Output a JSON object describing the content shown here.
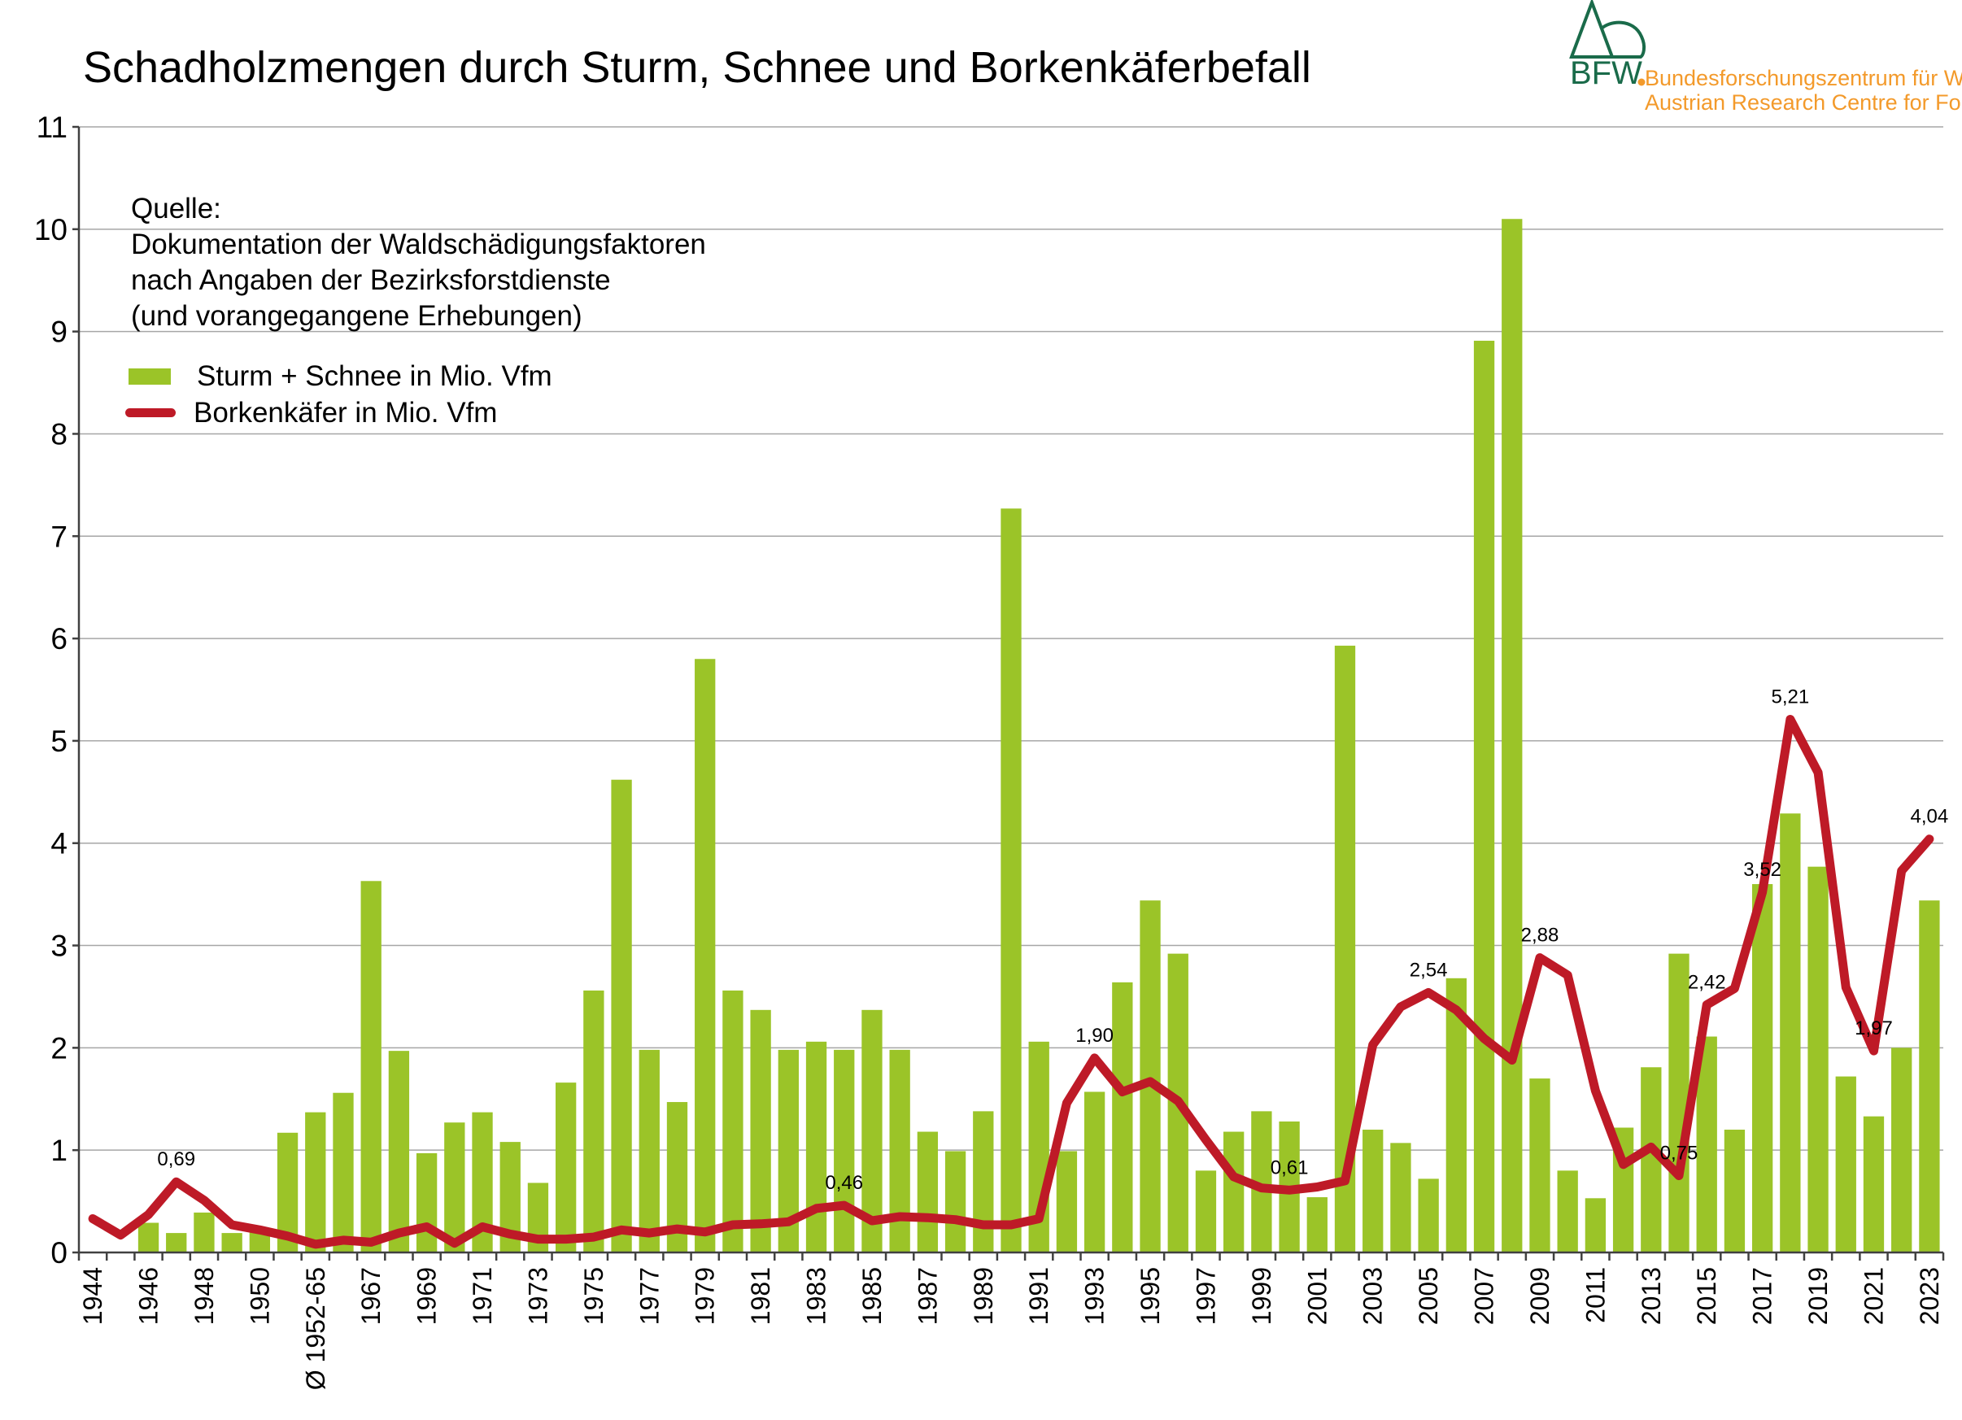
{
  "title": "Schadholzmengen durch Sturm, Schnee und Borkenkäferbefall",
  "logo": {
    "text": "BFW",
    "org_de": "Bundesforschungszentrum für Wald",
    "org_en": "Austrian Research Centre for Forests",
    "colors": {
      "green": "#1a6b4a",
      "orange": "#f39a2b"
    }
  },
  "source": {
    "line1": "Quelle:",
    "line2": "Dokumentation der Waldschädigungsfaktoren",
    "line3": "nach Angaben der Bezirksforstdienste",
    "line4": "(und vorangegangene Erhebungen)"
  },
  "chart_data": {
    "type": "bar+line",
    "title": "Schadholzmengen durch Sturm, Schnee und Borkenkäferbefall",
    "ylim": [
      0,
      11
    ],
    "yticks": [
      0,
      1,
      2,
      3,
      4,
      5,
      6,
      7,
      8,
      9,
      10,
      11
    ],
    "grid": true,
    "legend_position": "top-left",
    "categories": [
      "1944",
      "1945",
      "1946",
      "1947",
      "1948",
      "1949",
      "1950",
      "1951",
      "Ø 1952-65",
      "1966",
      "1967",
      "1968",
      "1969",
      "1970",
      "1971",
      "1972",
      "1973",
      "1974",
      "1975",
      "1976",
      "1977",
      "1978",
      "1979",
      "1980",
      "1981",
      "1982",
      "1983",
      "1984",
      "1985",
      "1986",
      "1987",
      "1988",
      "1989",
      "1990",
      "1991",
      "1992",
      "1993",
      "1994",
      "1995",
      "1996",
      "1997",
      "1998",
      "1999",
      "2000",
      "2001",
      "2002",
      "2003",
      "2004",
      "2005",
      "2006",
      "2007",
      "2008",
      "2009",
      "2010",
      "2011",
      "2012",
      "2013",
      "2014",
      "2015",
      "2016",
      "2017",
      "2018",
      "2019",
      "2020",
      "2021",
      "2022",
      "2023"
    ],
    "tick_labels_shown": [
      "1944",
      "1946",
      "1948",
      "1950",
      "Ø 1952-65",
      "1967",
      "1969",
      "1971",
      "1973",
      "1975",
      "1977",
      "1979",
      "1981",
      "1983",
      "1985",
      "1987",
      "1989",
      "1991",
      "1993",
      "1995",
      "1997",
      "1999",
      "2001",
      "2003",
      "2005",
      "2007",
      "2009",
      "2011",
      "2013",
      "2015",
      "2017",
      "2019",
      "2021",
      "2023"
    ],
    "series": [
      {
        "name": "Sturm + Schnee in Mio. Vfm",
        "kind": "bar",
        "color": "#9bc428",
        "values": [
          0,
          0,
          0.29,
          0.19,
          0.39,
          0.19,
          0.2,
          1.17,
          1.37,
          1.56,
          3.63,
          1.97,
          0.97,
          1.27,
          1.37,
          1.08,
          0.68,
          1.66,
          2.56,
          4.62,
          1.98,
          1.47,
          5.8,
          2.56,
          2.37,
          1.98,
          2.06,
          1.98,
          2.37,
          1.98,
          1.18,
          0.99,
          1.38,
          7.27,
          2.06,
          0.99,
          1.57,
          2.64,
          3.44,
          2.92,
          0.8,
          1.18,
          1.38,
          1.28,
          0.54,
          5.93,
          1.2,
          1.07,
          0.72,
          2.68,
          8.91,
          10.1,
          1.7,
          0.8,
          0.53,
          1.22,
          1.81,
          2.92,
          2.11,
          1.2,
          3.6,
          4.29,
          3.77,
          1.72,
          1.33,
          2.0,
          3.44
        ]
      },
      {
        "name": "Borkenkäfer in Mio. Vfm",
        "kind": "line",
        "color": "#be1a27",
        "values": [
          0.33,
          0.17,
          0.37,
          0.69,
          0.51,
          0.27,
          0.22,
          0.16,
          0.08,
          0.12,
          0.1,
          0.19,
          0.25,
          0.09,
          0.25,
          0.18,
          0.13,
          0.13,
          0.15,
          0.22,
          0.19,
          0.23,
          0.2,
          0.27,
          0.28,
          0.3,
          0.43,
          0.46,
          0.31,
          0.35,
          0.34,
          0.32,
          0.27,
          0.27,
          0.33,
          1.46,
          1.9,
          1.57,
          1.67,
          1.48,
          1.1,
          0.74,
          0.63,
          0.61,
          0.64,
          0.7,
          2.03,
          2.4,
          2.54,
          2.37,
          2.09,
          1.88,
          2.88,
          2.71,
          1.58,
          0.86,
          1.03,
          0.75,
          2.42,
          2.58,
          3.52,
          5.21,
          4.69,
          2.59,
          1.97,
          3.73,
          4.04
        ]
      }
    ],
    "data_labels": [
      {
        "category": "1947",
        "text": "0,69"
      },
      {
        "category": "1984",
        "text": "0,46"
      },
      {
        "category": "1993",
        "text": "1,90"
      },
      {
        "category": "2000",
        "text": "0,61"
      },
      {
        "category": "2005",
        "text": "2,54"
      },
      {
        "category": "2009",
        "text": "2,88"
      },
      {
        "category": "2014",
        "text": "0,75"
      },
      {
        "category": "2015",
        "text": "2,42"
      },
      {
        "category": "2017",
        "text": "3,52"
      },
      {
        "category": "2018",
        "text": "5,21"
      },
      {
        "category": "2021",
        "text": "1,97"
      },
      {
        "category": "2023",
        "text": "4,04"
      }
    ]
  }
}
